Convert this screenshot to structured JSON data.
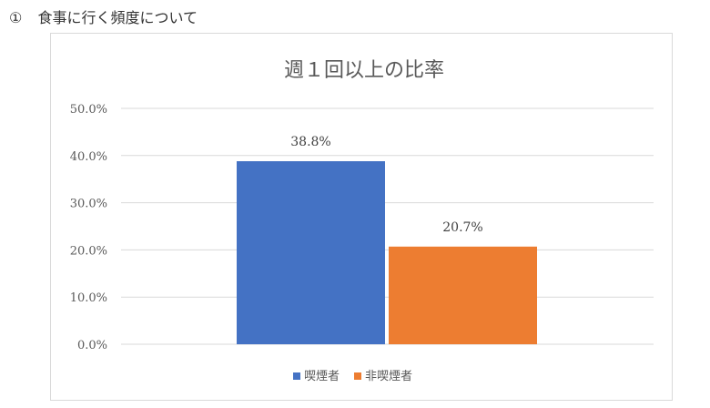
{
  "heading": {
    "number": "①",
    "text": "食事に行く頻度について"
  },
  "chart_data": {
    "type": "bar",
    "title": "週１回以上の比率",
    "categories": [
      ""
    ],
    "series": [
      {
        "name": "喫煙者",
        "values": [
          38.8
        ],
        "label": "38.8%",
        "color": "#4472C4"
      },
      {
        "name": "非喫煙者",
        "values": [
          20.7
        ],
        "label": "20.7%",
        "color": "#ED7D31"
      }
    ],
    "ylim": [
      0,
      50
    ],
    "yticks": [
      0,
      10,
      20,
      30,
      40,
      50
    ],
    "ytick_labels": [
      "0.0%",
      "10.0%",
      "20.0%",
      "30.0%",
      "40.0%",
      "50.0%"
    ],
    "grid": true,
    "gridline_color": "#d9d9d9",
    "legend_position": "bottom",
    "xlabel": "",
    "ylabel": ""
  }
}
